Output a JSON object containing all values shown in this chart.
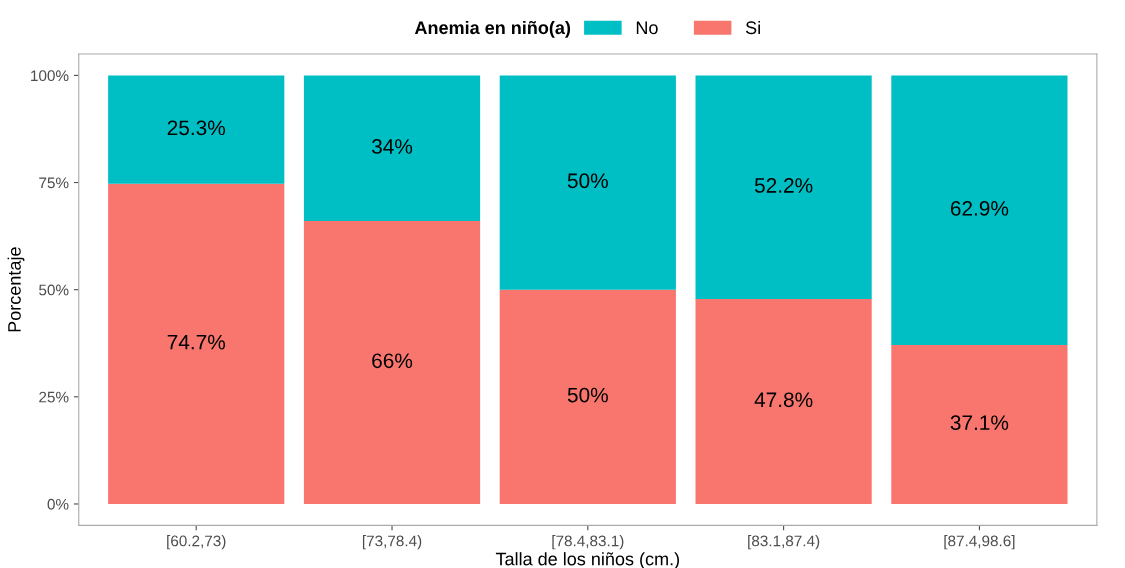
{
  "chart_data": {
    "type": "bar",
    "stacked": true,
    "xlabel": "Talla de los niños (cm.)",
    "ylabel": "Porcentaje",
    "legend_title": "Anemia en niño(a)",
    "legend": "top",
    "categories": [
      "[60.2,73)",
      "[73,78.4)",
      "[78.4,83.1)",
      "[83.1,87.4)",
      "[87.4,98.6]"
    ],
    "series": [
      {
        "name": "Si",
        "color": "#f8766d",
        "values": [
          74.7,
          66,
          50,
          47.8,
          37.1
        ],
        "value_labels": [
          "74.7%",
          "66%",
          "50%",
          "47.8%",
          "37.1%"
        ]
      },
      {
        "name": "No",
        "color": "#00bfc4",
        "values": [
          25.3,
          34,
          50,
          52.2,
          62.9
        ],
        "value_labels": [
          "25.3%",
          "34%",
          "50%",
          "52.2%",
          "62.9%"
        ]
      }
    ],
    "ylim": [
      -5,
      105
    ],
    "yticks": [
      {
        "value": 0,
        "label": "0%"
      },
      {
        "value": 25,
        "label": "25%"
      },
      {
        "value": 50,
        "label": "50%"
      },
      {
        "value": 75,
        "label": "75%"
      },
      {
        "value": 100,
        "label": "100%"
      }
    ],
    "grid": false
  }
}
